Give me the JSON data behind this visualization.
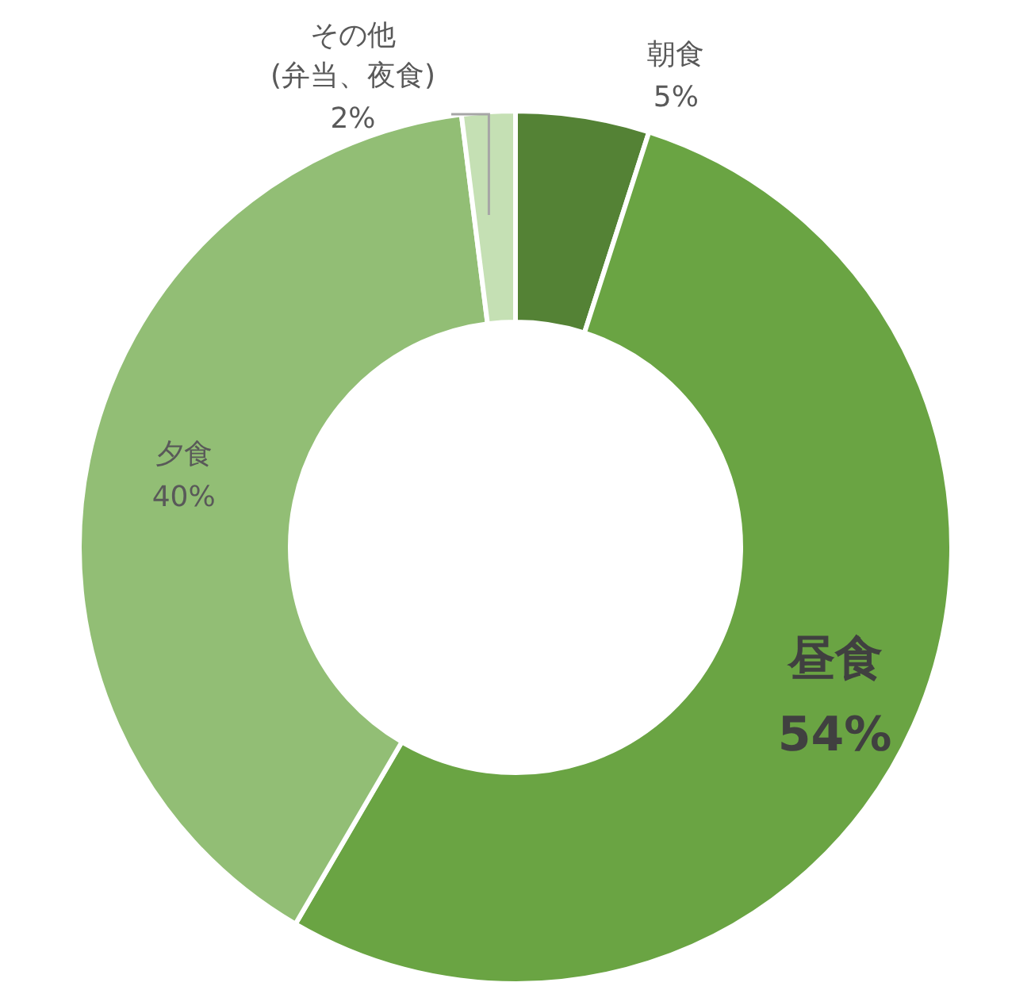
{
  "chart_data": {
    "type": "donut",
    "categories": [
      "朝食",
      "昼食",
      "夕食",
      "その他(弁当、夜食)"
    ],
    "values": [
      5,
      54,
      40,
      2
    ],
    "colors": [
      "#548235",
      "#6aa443",
      "#92be75",
      "#c5e0b4"
    ],
    "value_labels": [
      "5%",
      "54%",
      "40%",
      "2%"
    ]
  }
}
